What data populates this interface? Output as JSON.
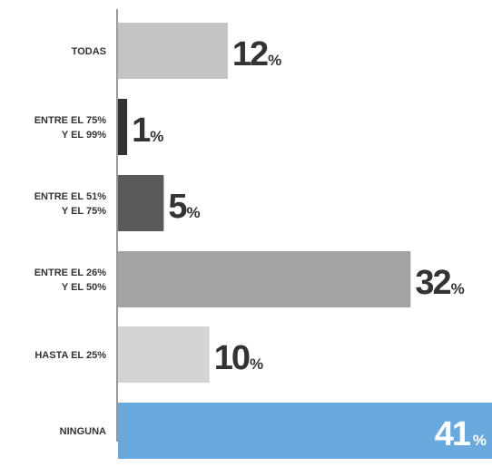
{
  "chart_data": {
    "type": "bar",
    "orientation": "horizontal",
    "categories": [
      [
        "TODAS"
      ],
      [
        "ENTRE EL 75%",
        "Y EL 99%"
      ],
      [
        "ENTRE EL 51%",
        "Y EL 75%"
      ],
      [
        "ENTRE EL 26%",
        "Y EL 50%"
      ],
      [
        "HASTA EL 25%"
      ],
      [
        "NINGUNA"
      ]
    ],
    "values": [
      12,
      1,
      5,
      32,
      10,
      41
    ],
    "unit": "%",
    "colors": [
      "#c3c3c3",
      "#333333",
      "#5a5a5a",
      "#a3a3a3",
      "#d4d4d4",
      "#6aa9dd"
    ],
    "value_label_colors": [
      "#333333",
      "#333333",
      "#333333",
      "#333333",
      "#333333",
      "#ffffff"
    ],
    "grid": false,
    "legend": "none"
  }
}
